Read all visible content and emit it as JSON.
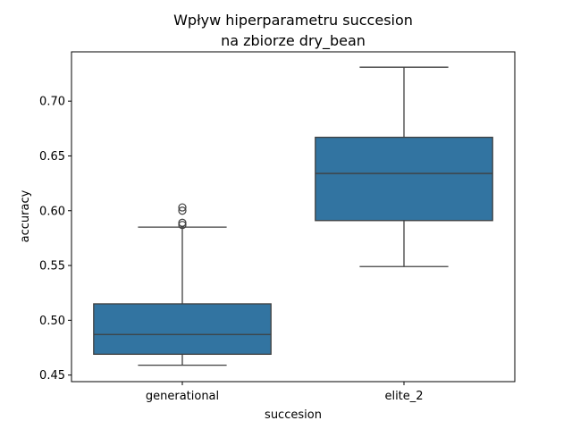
{
  "chart_data": {
    "type": "box",
    "title_lines": [
      "Wpływ hiperparametru succesion",
      "na zbiorze dry_bean"
    ],
    "xlabel": "succesion",
    "ylabel": "accuracy",
    "ylim": [
      0.444,
      0.745
    ],
    "yticks": [
      0.45,
      0.5,
      0.55,
      0.6,
      0.65,
      0.7
    ],
    "ytick_labels": [
      "0.45",
      "0.50",
      "0.55",
      "0.60",
      "0.65",
      "0.70"
    ],
    "categories": [
      "generational",
      "elite_2"
    ],
    "boxes": [
      {
        "category": "generational",
        "whisker_low": 0.459,
        "q1": 0.469,
        "median": 0.487,
        "q3": 0.515,
        "whisker_high": 0.585,
        "outliers": [
          0.587,
          0.589,
          0.6,
          0.603
        ]
      },
      {
        "category": "elite_2",
        "whisker_low": 0.549,
        "q1": 0.591,
        "median": 0.634,
        "q3": 0.667,
        "whisker_high": 0.731,
        "outliers": []
      }
    ],
    "box_color": "#3274a1",
    "line_color": "#3f3f3f",
    "grid": false
  }
}
